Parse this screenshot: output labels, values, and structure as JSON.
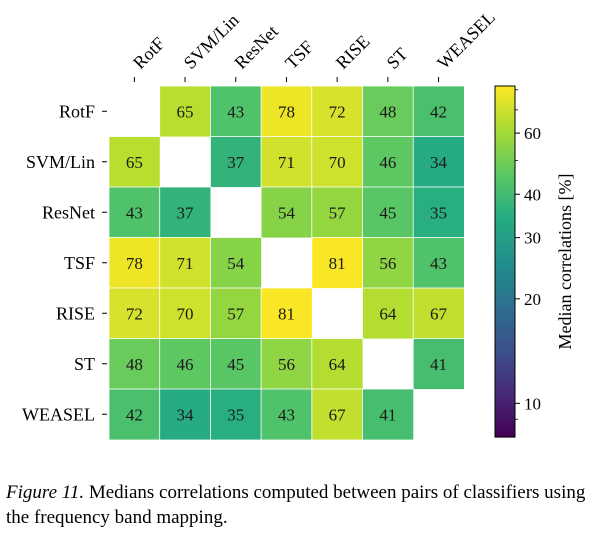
{
  "chart_data": {
    "type": "heatmap",
    "row_labels": [
      "RotF",
      "SVM/Lin",
      "ResNet",
      "TSF",
      "RISE",
      "ST",
      "WEASEL"
    ],
    "col_labels": [
      "RotF",
      "SVM/Lin",
      "ResNet",
      "TSF",
      "RISE",
      "ST",
      "WEASEL"
    ],
    "values": [
      [
        null,
        65,
        43,
        78,
        72,
        48,
        42
      ],
      [
        65,
        null,
        37,
        71,
        70,
        46,
        34
      ],
      [
        43,
        37,
        null,
        54,
        57,
        45,
        35
      ],
      [
        78,
        71,
        54,
        null,
        81,
        56,
        43
      ],
      [
        72,
        70,
        57,
        81,
        null,
        64,
        67
      ],
      [
        48,
        46,
        45,
        56,
        64,
        null,
        41
      ],
      [
        42,
        34,
        35,
        43,
        67,
        41,
        null
      ]
    ],
    "colorbar": {
      "label": "Median correlations [%]",
      "scale": "log",
      "range": [
        8,
        82
      ],
      "ticks": [
        10,
        20,
        30,
        40,
        60
      ],
      "colormap": "viridis"
    }
  },
  "caption": {
    "label": "Figure 11.",
    "text": " Medians correlations computed between pairs of classifiers using the frequency band mapping."
  }
}
